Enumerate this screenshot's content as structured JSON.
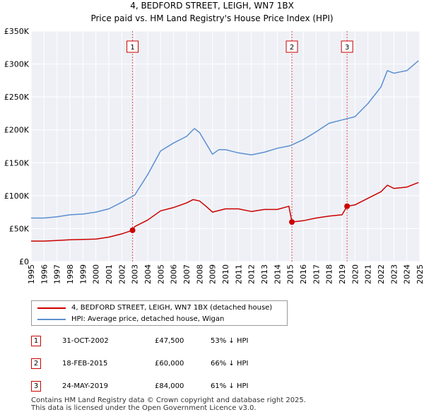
{
  "chart_data": {
    "type": "line",
    "title": "4, BEDFORD STREET, LEIGH, WN7 1BX",
    "subtitle": "Price paid vs. HM Land Registry's House Price Index (HPI)",
    "ylim": [
      0,
      350000
    ],
    "xlim": [
      1995,
      2025
    ],
    "y_ticks": [
      0,
      50000,
      100000,
      150000,
      200000,
      250000,
      300000,
      350000
    ],
    "y_tick_labels": [
      "£0",
      "£50K",
      "£100K",
      "£150K",
      "£200K",
      "£250K",
      "£300K",
      "£350K"
    ],
    "x_ticks": [
      1995,
      1996,
      1997,
      1998,
      1999,
      2000,
      2001,
      2002,
      2003,
      2004,
      2005,
      2006,
      2007,
      2008,
      2009,
      2010,
      2011,
      2012,
      2013,
      2014,
      2015,
      2016,
      2017,
      2018,
      2019,
      2020,
      2021,
      2022,
      2023,
      2024,
      2025
    ],
    "grid": true,
    "series": [
      {
        "name": "4, BEDFORD STREET, LEIGH, WN7 1BX (detached house)",
        "color": "#cc0000",
        "x": [
          1995,
          1996,
          1997,
          1998,
          1999,
          2000,
          2001,
          2002,
          2002.83,
          2003,
          2004,
          2005,
          2006,
          2007,
          2007.5,
          2008,
          2008.5,
          2009,
          2010,
          2011,
          2012,
          2013,
          2014,
          2014.9,
          2015.13,
          2016,
          2017,
          2018,
          2019,
          2019.39,
          2020,
          2021,
          2022,
          2022.5,
          2023,
          2024,
          2024.9
        ],
        "values": [
          31000,
          31000,
          32000,
          33000,
          33500,
          34000,
          37000,
          42000,
          47500,
          53000,
          63000,
          77000,
          82000,
          89000,
          94000,
          92000,
          84000,
          75000,
          80000,
          80000,
          76000,
          79000,
          79000,
          84000,
          60000,
          62000,
          66000,
          69000,
          71000,
          84000,
          86000,
          96000,
          106000,
          116000,
          111000,
          113000,
          120000
        ]
      },
      {
        "name": "HPI: Average price, detached house, Wigan",
        "color": "#5b8fd0",
        "x": [
          1995,
          1996,
          1997,
          1998,
          1999,
          2000,
          2001,
          2002,
          2003,
          2004,
          2005,
          2006,
          2007,
          2007.6,
          2008,
          2009,
          2009.5,
          2010,
          2011,
          2012,
          2013,
          2014,
          2015,
          2016,
          2017,
          2018,
          2019,
          2020,
          2021,
          2022,
          2022.5,
          2023,
          2023.5,
          2024,
          2024.9
        ],
        "values": [
          66000,
          66000,
          68000,
          71000,
          72000,
          75000,
          80000,
          90000,
          101000,
          132000,
          168000,
          180000,
          190000,
          202000,
          196000,
          163000,
          170000,
          170000,
          165000,
          162000,
          166000,
          172000,
          176000,
          185000,
          197000,
          210000,
          215000,
          220000,
          240000,
          265000,
          290000,
          286000,
          288000,
          290000,
          305000
        ]
      }
    ],
    "transactions": [
      {
        "label": "1",
        "x": 2002.83,
        "price": 47500,
        "date": "31-OCT-2002",
        "price_text": "£47,500",
        "hpi_text": "53% ↓ HPI"
      },
      {
        "label": "2",
        "x": 2015.13,
        "price": 60000,
        "date": "18-FEB-2015",
        "price_text": "£60,000",
        "hpi_text": "66% ↓ HPI"
      },
      {
        "label": "3",
        "x": 2019.39,
        "price": 84000,
        "date": "24-MAY-2019",
        "price_text": "£84,000",
        "hpi_text": "61% ↓ HPI"
      }
    ]
  },
  "legend": {
    "property_label": "4, BEDFORD STREET, LEIGH, WN7 1BX (detached house)",
    "hpi_label": "HPI: Average price, detached house, Wigan"
  },
  "footer": {
    "line1": "Contains HM Land Registry data © Crown copyright and database right 2025.",
    "line2": "This data is licensed under the Open Government Licence v3.0."
  }
}
